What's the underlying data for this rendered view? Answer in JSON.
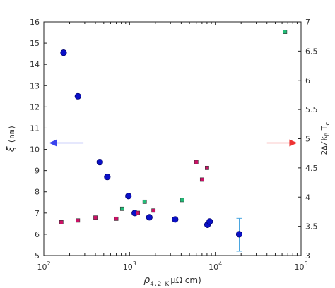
{
  "chart_data": {
    "type": "scatter",
    "title": "",
    "xlabel": {
      "rho": "ρ",
      "sub": "4.2 K",
      "rest": "μΩ cm)"
    },
    "ylabel_left": {
      "xi": "ξ",
      "rest": "(nm)"
    },
    "ylabel_right": {
      "pre": "2Δ/k",
      "sub1": "B",
      "mid": "T",
      "sub2": "c"
    },
    "x_scale": "log",
    "xlim": [
      100,
      100000
    ],
    "x_ticks": [
      {
        "value": 100,
        "base": "10",
        "exp": "2"
      },
      {
        "value": 1000,
        "base": "10",
        "exp": "3"
      },
      {
        "value": 10000,
        "base": "10",
        "exp": "4"
      },
      {
        "value": 100000,
        "base": "10",
        "exp": "5"
      }
    ],
    "ylim_left": [
      5,
      16
    ],
    "y_ticks_left": [
      "5",
      "6",
      "7",
      "8",
      "9",
      "10",
      "11",
      "12",
      "13",
      "14",
      "15",
      "16"
    ],
    "ylim_right": [
      3,
      7
    ],
    "y_ticks_right": [
      "3",
      "3.5",
      "4",
      "4.5",
      "5",
      "5.5",
      "6",
      "6.5",
      "7"
    ],
    "grid": false,
    "colors": {
      "xi": "#0a10c8",
      "xi_edge": "#00006e",
      "ratio_magenta": "#cc1166",
      "ratio_green": "#22bb77",
      "arrow_left": "#3a44ee",
      "arrow_right": "#ee3333",
      "errorbar": "#4aa6e0"
    },
    "series": [
      {
        "axis": "left",
        "marker": "circle",
        "points": [
          [
            170,
            14.55
          ],
          [
            250,
            12.5
          ],
          [
            450,
            9.4
          ],
          [
            550,
            8.7
          ],
          [
            970,
            7.8
          ],
          [
            1150,
            7.0
          ],
          [
            1700,
            6.8
          ],
          [
            3400,
            6.7
          ],
          [
            8100,
            6.45
          ],
          [
            8600,
            6.6
          ],
          [
            19000,
            6.0
          ]
        ]
      },
      {
        "axis": "right",
        "marker": "square",
        "color": "magenta",
        "points": [
          [
            160,
            3.57
          ],
          [
            250,
            3.6
          ],
          [
            400,
            3.65
          ],
          [
            700,
            3.63
          ],
          [
            1250,
            3.73
          ],
          [
            1900,
            3.77
          ],
          [
            6000,
            4.6
          ],
          [
            7000,
            4.3
          ],
          [
            8000,
            4.5
          ]
        ]
      },
      {
        "axis": "right",
        "marker": "square",
        "color": "green",
        "points": [
          [
            820,
            3.8
          ],
          [
            1500,
            3.92
          ],
          [
            4100,
            3.95
          ],
          [
            65000,
            6.83
          ]
        ]
      }
    ],
    "error_bar": {
      "axis": "left",
      "x": 19000,
      "y": 6.0,
      "low": 5.2,
      "high": 6.75
    },
    "annotations": [
      {
        "type": "arrow",
        "direction": "left",
        "x_from": 290,
        "x_to": 115,
        "y_left": 10.3
      },
      {
        "type": "arrow",
        "direction": "right",
        "x_from": 40000,
        "x_to": 90000,
        "y_left": 10.3
      }
    ]
  }
}
